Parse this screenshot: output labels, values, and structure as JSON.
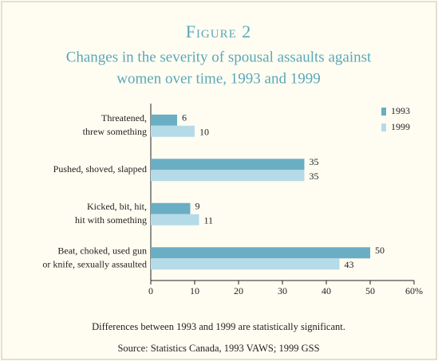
{
  "chart_data": {
    "type": "hbar",
    "title": "Figure 2",
    "subtitle": [
      "Changes in the severity of spousal assaults against",
      "women over time, 1993 and 1999"
    ],
    "categories": [
      [
        "Threatened,",
        "threw something"
      ],
      [
        "Pushed, shoved, slapped"
      ],
      [
        "Kicked, bit, hit,",
        "hit with something"
      ],
      [
        "Beat, choked, used gun",
        "or knife, sexually assaulted"
      ]
    ],
    "series": [
      {
        "name": "1993",
        "color": "#6aaec4",
        "values": [
          6,
          35,
          9,
          50
        ]
      },
      {
        "name": "1999",
        "color": "#b5dbe8",
        "values": [
          10,
          35,
          11,
          43
        ]
      }
    ],
    "xlim": [
      0,
      60
    ],
    "xticks": [
      0,
      10,
      20,
      30,
      40,
      50,
      {
        "value": 60,
        "label": "60%"
      }
    ],
    "legend": "top-right",
    "notes": [
      "Differences between 1993 and 1999 are statistically significant.",
      "Source: Statistics Canada, 1993 VAWS; 1999 GSS"
    ]
  }
}
